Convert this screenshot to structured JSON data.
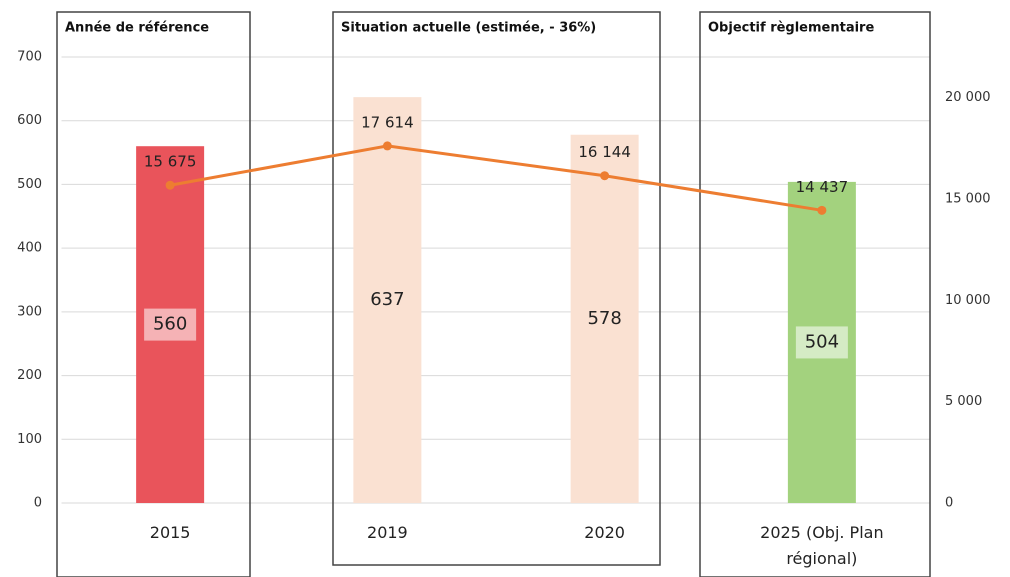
{
  "chart_data": {
    "type": "bar",
    "annotations": [
      "Année de référence",
      "Situation actuelle (estimée, - 36%)",
      "Objectif règlementaire"
    ],
    "categories": [
      "2015",
      "2019",
      "2020",
      "2025 (Obj. Plan régional)"
    ],
    "series": [
      {
        "type": "bar",
        "values": [
          560,
          637,
          578,
          504
        ],
        "colors": [
          "#e9545b",
          "#fae1d2",
          "#fae1d2",
          "#a3d27e"
        ]
      },
      {
        "type": "line",
        "axis": "y2",
        "color": "#ed7d31",
        "values": [
          15675,
          17614,
          16144,
          14437
        ],
        "value_labels": [
          "15 675",
          "17 614",
          "16 144",
          "14 437"
        ]
      }
    ],
    "ylim": [
      0,
      700
    ],
    "yticks": [
      0,
      100,
      200,
      300,
      400,
      500,
      600,
      700
    ],
    "y2lim": [
      0,
      22000
    ],
    "y2ticks": [
      0,
      {
        "value": 5000,
        "label": "5 000"
      },
      {
        "value": 10000,
        "label": "10 000"
      },
      {
        "value": 15000,
        "label": "15 000"
      },
      {
        "value": 20000,
        "label": "20 000"
      }
    ],
    "grid": true
  }
}
